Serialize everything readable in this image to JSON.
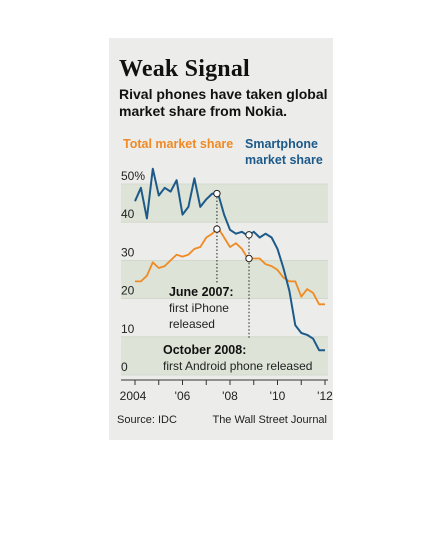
{
  "header": {
    "title": "Weak Signal",
    "subtitle": "Rival phones have taken global market share from Nokia."
  },
  "footer": {
    "source": "Source: IDC",
    "publisher": "The Wall Street Journal"
  },
  "chart_data": {
    "type": "line",
    "xlim": [
      2004,
      2012.5
    ],
    "ylim": [
      0,
      55
    ],
    "x_ticks": [
      {
        "label": "2004",
        "x": 2004
      },
      {
        "label": "'06",
        "x": 2006
      },
      {
        "label": "'08",
        "x": 2008
      },
      {
        "label": "'10",
        "x": 2010
      },
      {
        "label": "'12",
        "x": 2012
      }
    ],
    "y_ticks": [
      {
        "label": "0",
        "v": 0
      },
      {
        "label": "10",
        "v": 10
      },
      {
        "label": "20",
        "v": 20
      },
      {
        "label": "30",
        "v": 30
      },
      {
        "label": "40",
        "v": 40
      },
      {
        "label": "50%",
        "v": 50
      }
    ],
    "grid": "alternating-bands",
    "series": [
      {
        "name": "Total market share",
        "color": "#f08a24",
        "x": [
          2004,
          2004.25,
          2004.5,
          2004.75,
          2005,
          2005.25,
          2005.5,
          2005.75,
          2006,
          2006.25,
          2006.5,
          2006.75,
          2007,
          2007.25,
          2007.5,
          2007.75,
          2008,
          2008.25,
          2008.5,
          2008.75,
          2009,
          2009.25,
          2009.5,
          2009.75,
          2010,
          2010.25,
          2010.5,
          2010.75,
          2011,
          2011.25,
          2011.5,
          2011.75,
          2012
        ],
        "values": [
          24.5,
          24.5,
          26,
          29.5,
          28,
          28.5,
          30,
          31.5,
          31,
          31.5,
          33,
          33.5,
          36,
          37,
          38.5,
          36,
          33.5,
          34.5,
          33,
          30.5,
          30.5,
          30.5,
          29,
          28.5,
          27.5,
          25.5,
          24.5,
          24.5,
          20.5,
          22.5,
          21.5,
          18.5,
          18.5
        ]
      },
      {
        "name": "Smartphone market share",
        "color": "#1d5a8a",
        "x": [
          2004,
          2004.25,
          2004.5,
          2004.75,
          2005,
          2005.25,
          2005.5,
          2005.75,
          2006,
          2006.25,
          2006.5,
          2006.75,
          2007,
          2007.25,
          2007.5,
          2007.75,
          2008,
          2008.25,
          2008.5,
          2008.75,
          2009,
          2009.25,
          2009.5,
          2009.75,
          2010,
          2010.25,
          2010.5,
          2010.75,
          2011,
          2011.25,
          2011.5,
          2011.75,
          2012
        ],
        "values": [
          45.5,
          49,
          41,
          54,
          47,
          49,
          48,
          51,
          42,
          44,
          51.5,
          44,
          46,
          47.5,
          47.5,
          42,
          38,
          37,
          37.5,
          36.5,
          37.5,
          36,
          37,
          36,
          33,
          28,
          22,
          13,
          11,
          10.5,
          9.5,
          6.5,
          6.5
        ]
      }
    ],
    "annotations": [
      {
        "date": "June 2007:",
        "text": [
          "first iPhone",
          "released"
        ],
        "x": 2007.45
      },
      {
        "date": "October 2008:",
        "text": [
          "first Android phone released"
        ],
        "x": 2008.8
      }
    ]
  }
}
